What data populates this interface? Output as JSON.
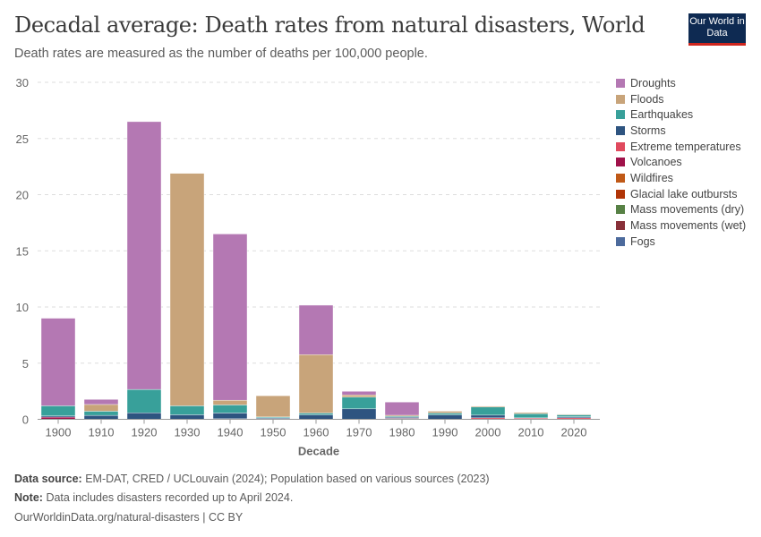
{
  "title": "Decadal average: Death rates from natural disasters, World",
  "subtitle": "Death rates are measured as the number of deaths per 100,000 people.",
  "logo": "Our World in Data",
  "footer": {
    "source_label": "Data source:",
    "source": "EM-DAT, CRED / UCLouvain (2024); Population based on various sources (2023)",
    "note_label": "Note:",
    "note": "Data includes disasters recorded up to April 2024.",
    "url": "OurWorldinData.org/natural-disasters | CC BY"
  },
  "chart_data": {
    "type": "bar",
    "stacked": true,
    "xlabel": "Decade",
    "ylabel": "",
    "ylim": [
      0,
      30
    ],
    "yticks": [
      0,
      5,
      10,
      15,
      20,
      25,
      30
    ],
    "grid": true,
    "legend": "right",
    "categories": [
      "1900",
      "1910",
      "1920",
      "1930",
      "1940",
      "1950",
      "1960",
      "1970",
      "1980",
      "1990",
      "2000",
      "2010",
      "2020"
    ],
    "series": [
      {
        "name": "Fogs",
        "color": "#4c6a9c",
        "values": [
          0,
          0,
          0,
          0,
          0,
          0.05,
          0,
          0,
          0,
          0,
          0,
          0,
          0
        ]
      },
      {
        "name": "Mass movements (wet)",
        "color": "#883039",
        "values": [
          0,
          0,
          0,
          0,
          0,
          0,
          0,
          0,
          0,
          0,
          0,
          0,
          0
        ]
      },
      {
        "name": "Mass movements (dry)",
        "color": "#578145",
        "values": [
          0,
          0,
          0,
          0,
          0,
          0,
          0,
          0,
          0,
          0,
          0,
          0,
          0
        ]
      },
      {
        "name": "Glacial lake outbursts",
        "color": "#b13507",
        "values": [
          0,
          0,
          0,
          0,
          0.05,
          0,
          0,
          0,
          0,
          0,
          0,
          0,
          0
        ]
      },
      {
        "name": "Wildfires",
        "color": "#c05917",
        "values": [
          0,
          0,
          0,
          0,
          0,
          0,
          0,
          0,
          0,
          0,
          0,
          0,
          0
        ]
      },
      {
        "name": "Volcanoes",
        "color": "#a0124a",
        "values": [
          0.2,
          0,
          0,
          0,
          0,
          0,
          0,
          0,
          0,
          0,
          0,
          0,
          0
        ]
      },
      {
        "name": "Extreme temperatures",
        "color": "#e04a5e",
        "values": [
          0,
          0,
          0,
          0,
          0,
          0,
          0,
          0,
          0.08,
          0,
          0.13,
          0.1,
          0.13
        ]
      },
      {
        "name": "Storms",
        "color": "#2e5480",
        "values": [
          0.1,
          0.35,
          0.58,
          0.4,
          0.51,
          0.08,
          0.4,
          0.93,
          0.1,
          0.4,
          0.24,
          0.03,
          0.1
        ]
      },
      {
        "name": "Earthquakes",
        "color": "#38a09a",
        "values": [
          0.9,
          0.37,
          2.08,
          0.8,
          0.72,
          0.08,
          0.16,
          1.04,
          0.08,
          0.16,
          0.72,
          0.37,
          0.17
        ]
      },
      {
        "name": "Floods",
        "color": "#c8a47a",
        "values": [
          0,
          0.6,
          0,
          20.7,
          0.42,
          1.89,
          5.2,
          0.2,
          0.1,
          0.16,
          0.08,
          0.1,
          0.05
        ]
      },
      {
        "name": "Droughts",
        "color": "#b478b3",
        "values": [
          7.8,
          0.45,
          23.84,
          0,
          14.8,
          0,
          4.4,
          0.32,
          1.17,
          0,
          0,
          0,
          0
        ]
      }
    ]
  }
}
